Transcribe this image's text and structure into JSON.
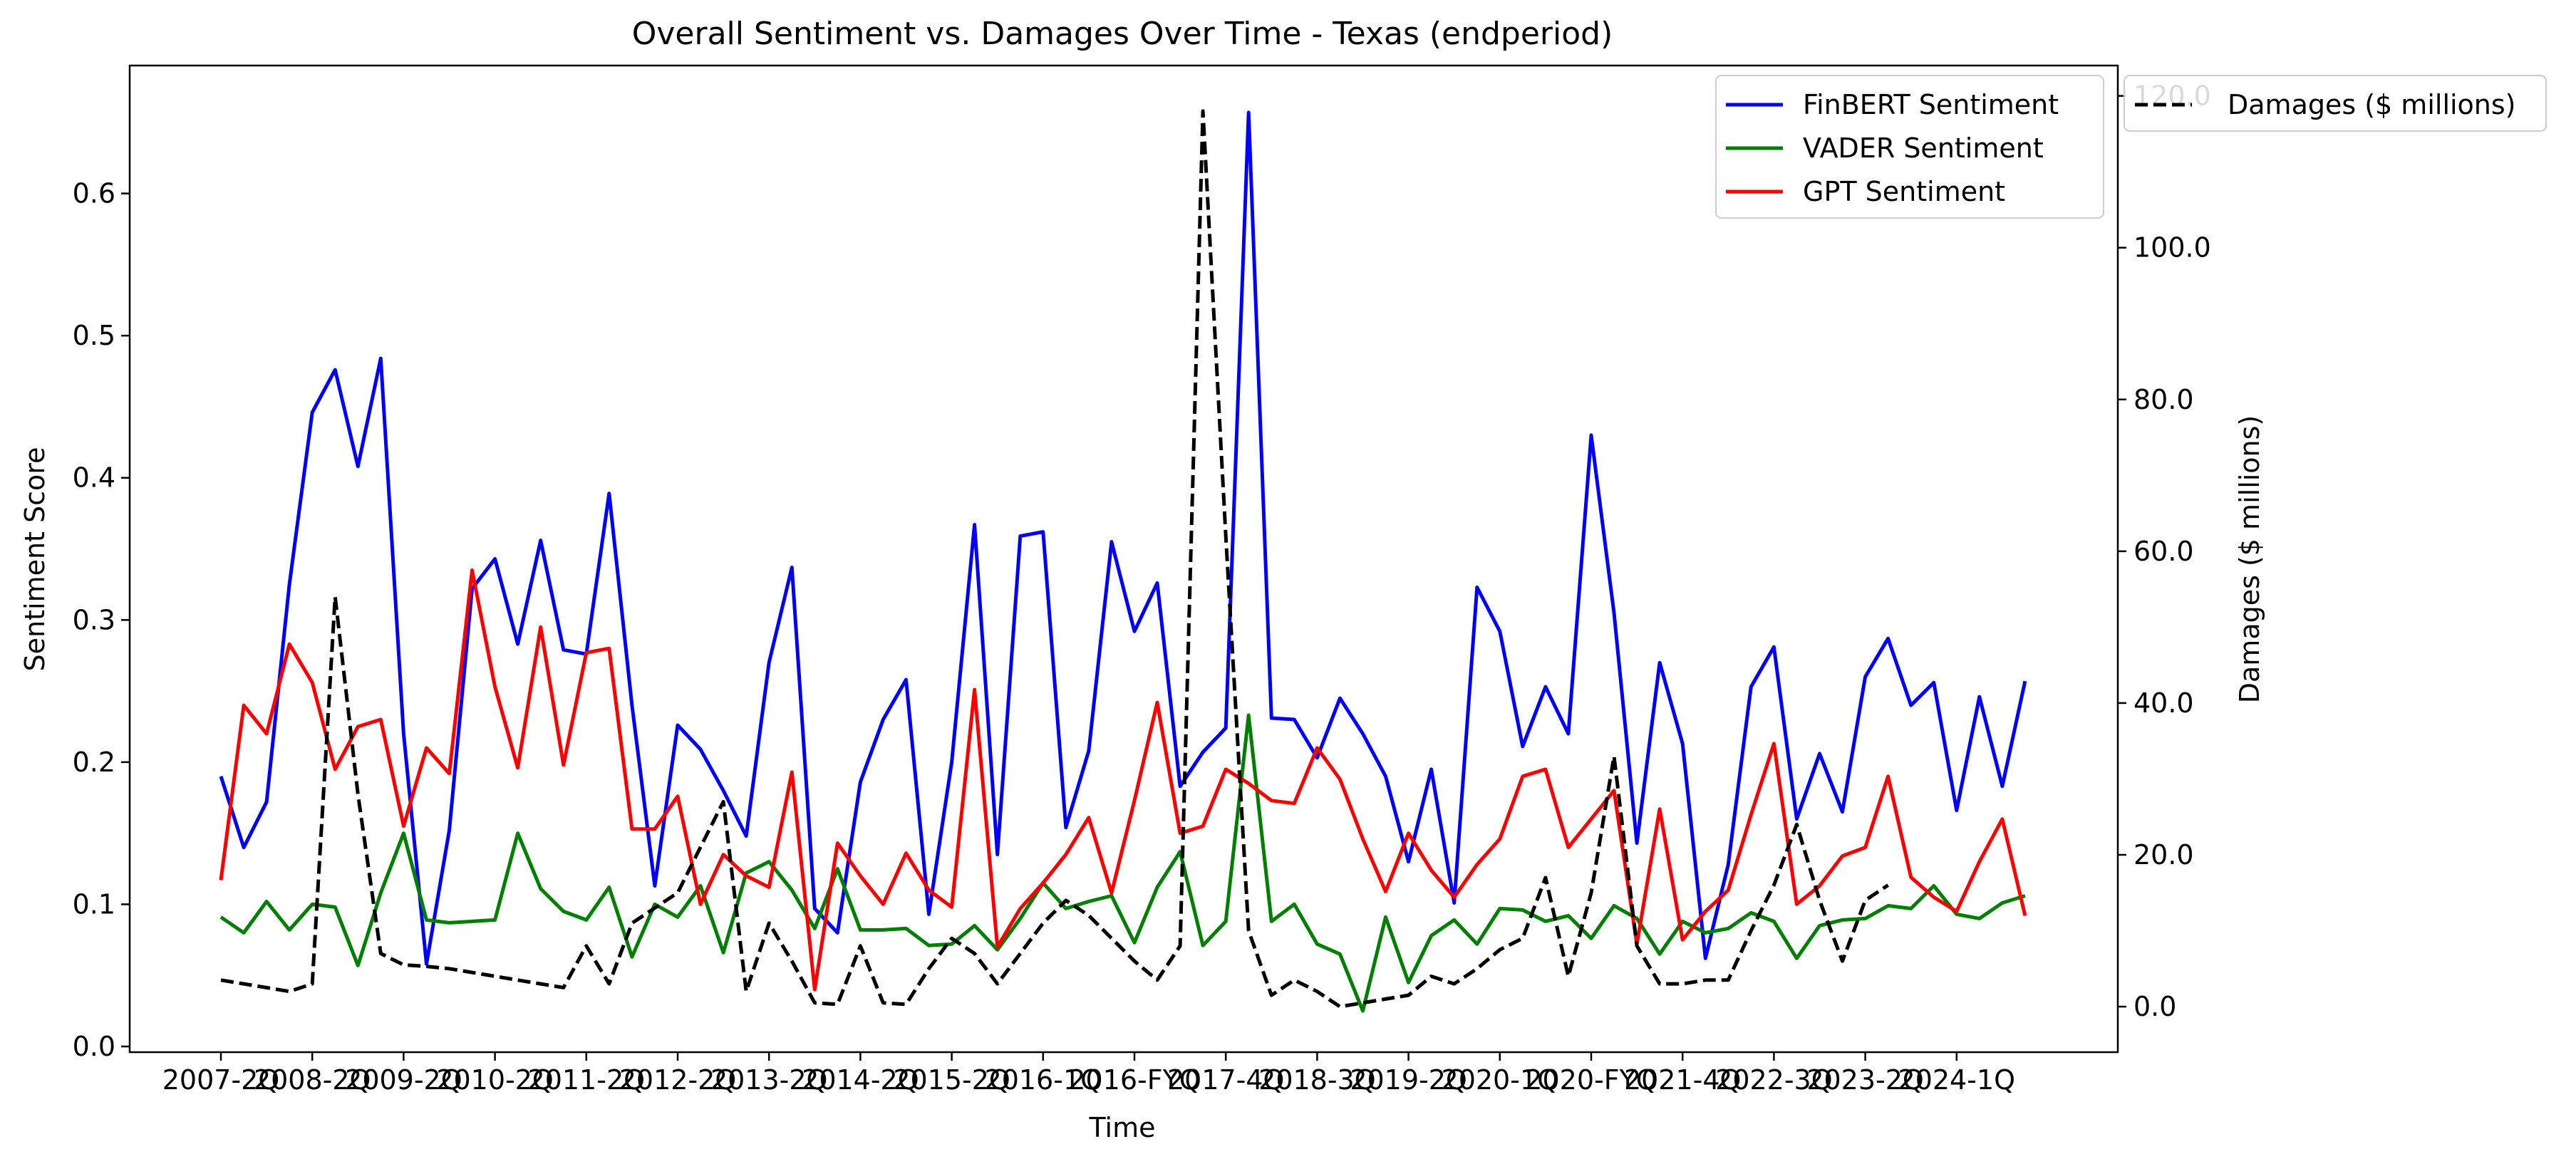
{
  "chart_data": {
    "type": "line",
    "title": "Overall Sentiment vs. Damages Over Time - Texas (endperiod)",
    "xlabel": "Time",
    "ylabel": "Sentiment Score",
    "y2label": "Damages ($ millions)",
    "ylim": [
      -0.004,
      0.69
    ],
    "y2lim": [
      -6,
      124
    ],
    "yticks": [
      "0.0",
      "0.1",
      "0.2",
      "0.3",
      "0.4",
      "0.5",
      "0.6"
    ],
    "y2ticks": [
      "0.0",
      "20.0",
      "40.0",
      "60.0",
      "80.0",
      "100.0",
      "120.0"
    ],
    "xticks": [
      {
        "i": 0,
        "label": "2007-2Q"
      },
      {
        "i": 4,
        "label": "2008-2Q"
      },
      {
        "i": 8,
        "label": "2009-2Q"
      },
      {
        "i": 12,
        "label": "2010-2Q"
      },
      {
        "i": 16,
        "label": "2011-2Q"
      },
      {
        "i": 20,
        "label": "2012-2Q"
      },
      {
        "i": 24,
        "label": "2013-2Q"
      },
      {
        "i": 28,
        "label": "2014-2Q"
      },
      {
        "i": 32,
        "label": "2015-2Q"
      },
      {
        "i": 36,
        "label": "2016-1Q"
      },
      {
        "i": 40,
        "label": "2016-FYQ"
      },
      {
        "i": 44,
        "label": "2017-4Q"
      },
      {
        "i": 48,
        "label": "2018-3Q"
      },
      {
        "i": 52,
        "label": "2019-2Q"
      },
      {
        "i": 56,
        "label": "2020-1Q"
      },
      {
        "i": 60,
        "label": "2020-FYQ"
      },
      {
        "i": 64,
        "label": "2021-4Q"
      },
      {
        "i": 68,
        "label": "2022-3Q"
      },
      {
        "i": 72,
        "label": "2023-2Q"
      },
      {
        "i": 76,
        "label": "2024-1Q"
      }
    ],
    "n_points": 80,
    "grid": false,
    "legend_left": {
      "position": "top-right",
      "entries": [
        "FinBERT Sentiment",
        "VADER Sentiment",
        "GPT Sentiment"
      ]
    },
    "legend_right": {
      "position": "top-right",
      "entries": [
        "Damages ($ millions)"
      ]
    },
    "series": [
      {
        "name": "FinBERT Sentiment",
        "axis": "left",
        "color": "#0000ff",
        "style": "solid",
        "values": [
          0.19,
          0.14,
          0.172,
          0.325,
          0.446,
          0.476,
          0.408,
          0.484,
          0.22,
          0.058,
          0.152,
          0.322,
          0.343,
          0.283,
          0.356,
          0.279,
          0.276,
          0.389,
          0.24,
          0.113,
          0.226,
          0.209,
          0.18,
          0.148,
          0.27,
          0.337,
          0.097,
          0.08,
          0.186,
          0.23,
          0.258,
          0.093,
          0.2,
          0.367,
          0.135,
          0.359,
          0.362,
          0.154,
          0.208,
          0.355,
          0.292,
          0.326,
          0.183,
          0.207,
          0.224,
          0.657,
          0.231,
          0.23,
          0.203,
          0.245,
          0.22,
          0.19,
          0.13,
          0.195,
          0.101,
          0.323,
          0.292,
          0.211,
          0.253,
          0.22,
          0.43,
          0.305,
          0.143,
          0.27,
          0.213,
          0.062,
          0.128,
          0.253,
          0.281,
          0.16,
          0.206,
          0.165,
          0.26,
          0.287,
          0.24,
          0.256,
          0.166,
          0.246,
          0.183,
          0.257
        ]
      },
      {
        "name": "VADER Sentiment",
        "axis": "left",
        "color": "#008000",
        "style": "solid",
        "values": [
          0.091,
          0.08,
          0.102,
          0.082,
          0.1,
          0.098,
          0.057,
          0.108,
          0.15,
          0.089,
          0.087,
          0.088,
          0.089,
          0.15,
          0.111,
          0.095,
          0.089,
          0.112,
          0.063,
          0.1,
          0.091,
          0.113,
          0.066,
          0.122,
          0.13,
          0.11,
          0.083,
          0.125,
          0.082,
          0.082,
          0.083,
          0.071,
          0.072,
          0.085,
          0.068,
          0.09,
          0.115,
          0.097,
          0.102,
          0.106,
          0.073,
          0.112,
          0.137,
          0.071,
          0.088,
          0.233,
          0.088,
          0.1,
          0.072,
          0.065,
          0.025,
          0.091,
          0.045,
          0.078,
          0.089,
          0.072,
          0.097,
          0.096,
          0.088,
          0.092,
          0.076,
          0.099,
          0.09,
          0.065,
          0.088,
          0.08,
          0.083,
          0.094,
          0.088,
          0.062,
          0.085,
          0.089,
          0.09,
          0.099,
          0.097,
          0.113,
          0.093,
          0.09,
          0.101,
          0.106
        ]
      },
      {
        "name": "GPT Sentiment",
        "axis": "left",
        "color": "#ff0000",
        "style": "solid",
        "values": [
          0.117,
          0.24,
          0.22,
          0.283,
          0.256,
          0.195,
          0.225,
          0.23,
          0.155,
          0.21,
          0.192,
          0.335,
          0.253,
          0.196,
          0.295,
          0.198,
          0.277,
          0.28,
          0.153,
          0.153,
          0.176,
          0.1,
          0.135,
          0.12,
          0.112,
          0.193,
          0.04,
          0.143,
          0.12,
          0.1,
          0.136,
          0.11,
          0.098,
          0.251,
          0.07,
          0.097,
          0.115,
          0.135,
          0.161,
          0.108,
          0.173,
          0.242,
          0.15,
          0.155,
          0.195,
          0.185,
          0.173,
          0.171,
          0.21,
          0.188,
          0.146,
          0.109,
          0.15,
          0.124,
          0.105,
          0.128,
          0.146,
          0.19,
          0.195,
          0.14,
          0.16,
          0.18,
          0.072,
          0.167,
          0.075,
          0.095,
          0.11,
          0.163,
          0.213,
          0.1,
          0.113,
          0.134,
          0.14,
          0.19,
          0.119,
          0.105,
          0.095,
          0.13,
          0.16,
          0.092
        ]
      },
      {
        "name": "Damages ($ millions)",
        "axis": "right",
        "color": "#000000",
        "style": "dashed",
        "values": [
          3.5,
          3,
          2.5,
          2,
          3,
          54,
          28,
          7,
          5.5,
          5.3,
          5,
          4.5,
          4,
          3.5,
          3,
          2.5,
          8,
          3,
          11,
          13,
          15,
          21,
          27,
          2,
          11,
          6,
          0.5,
          0.3,
          8,
          0.5,
          0.3,
          5,
          9,
          7,
          3,
          7,
          11,
          14,
          12,
          9,
          6,
          3.5,
          8,
          118,
          62,
          10,
          1.5,
          3.5,
          2,
          0,
          0.5,
          1,
          1.5,
          4,
          3,
          5,
          7.5,
          9,
          17,
          4,
          15,
          33,
          8,
          3,
          3,
          3.5,
          3.5,
          10,
          16,
          24,
          14,
          6,
          14,
          16,
          null,
          null,
          null,
          null,
          null,
          null
        ]
      }
    ]
  }
}
